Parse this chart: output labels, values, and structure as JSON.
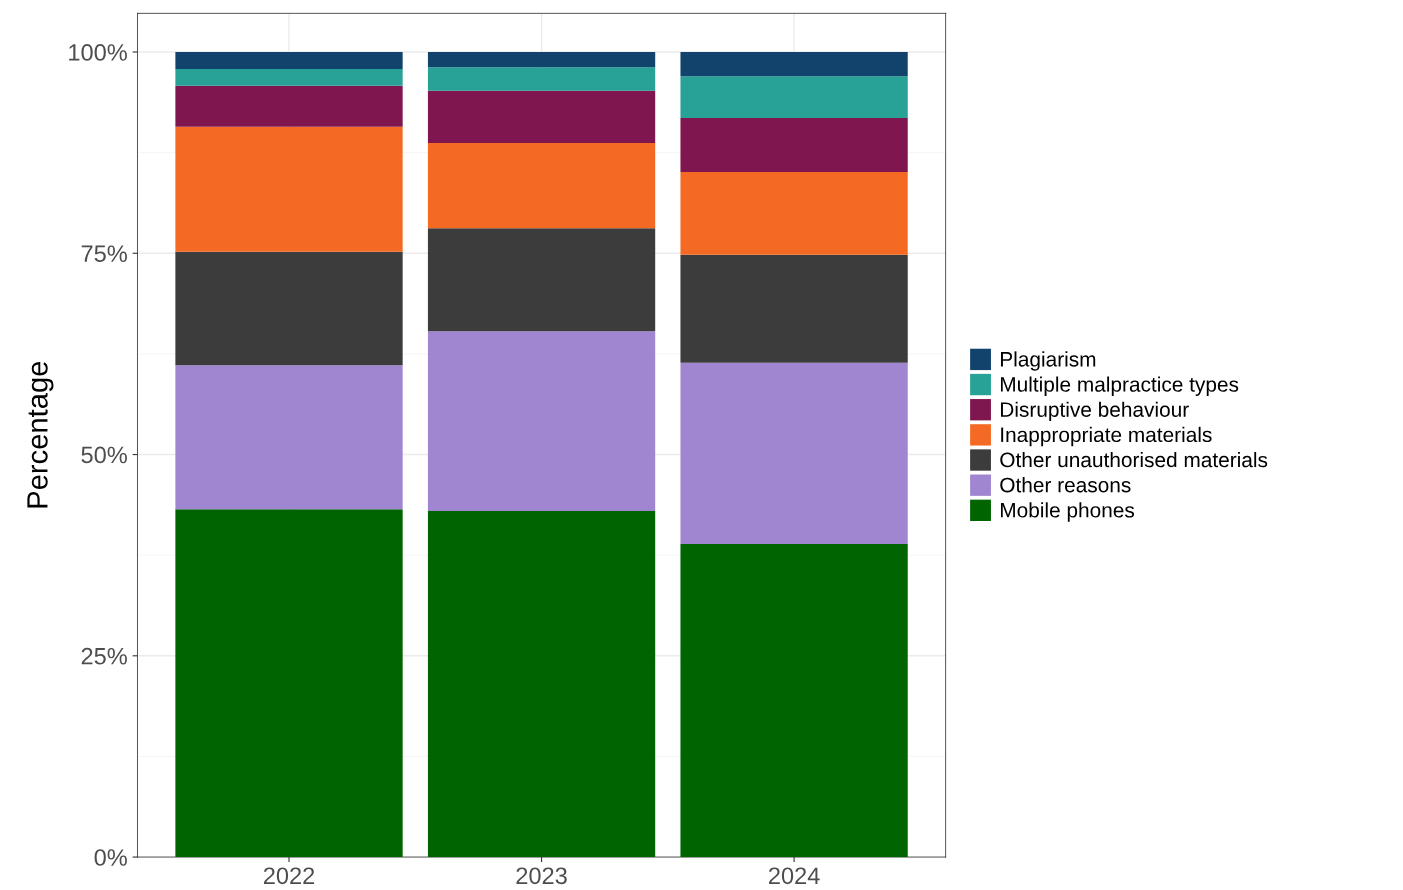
{
  "chart_data": {
    "type": "bar",
    "stacked": true,
    "ylabel": "Percentage",
    "categories": [
      "2022",
      "2023",
      "2024"
    ],
    "series": [
      {
        "name": "Mobile phones",
        "color": "#006400",
        "values": [
          43.2,
          43.0,
          38.9
        ]
      },
      {
        "name": "Other reasons",
        "color": "#a086d0",
        "values": [
          17.9,
          22.3,
          22.5
        ]
      },
      {
        "name": "Other unauthorised materials",
        "color": "#3c3c3c",
        "values": [
          14.1,
          12.8,
          13.4
        ]
      },
      {
        "name": "Inappropriate materials",
        "color": "#f46a25",
        "values": [
          15.5,
          10.6,
          10.3
        ]
      },
      {
        "name": "Disruptive behaviour",
        "color": "#801650",
        "values": [
          5.1,
          6.5,
          6.7
        ]
      },
      {
        "name": "Multiple malpractice types",
        "color": "#28a197",
        "values": [
          2.1,
          2.9,
          5.2
        ]
      },
      {
        "name": "Plagiarism",
        "color": "#12436d",
        "values": [
          2.1,
          1.9,
          3.0
        ]
      }
    ],
    "ylim": [
      0,
      104.8
    ],
    "yticks": [
      {
        "value": 0,
        "label": "0%"
      },
      {
        "value": 12.5,
        "label": null
      },
      {
        "value": 25,
        "label": "25%"
      },
      {
        "value": 37.5,
        "label": null
      },
      {
        "value": 50,
        "label": "50%"
      },
      {
        "value": 62.5,
        "label": null
      },
      {
        "value": 75,
        "label": "75%"
      },
      {
        "value": 87.5,
        "label": null
      },
      {
        "value": 100,
        "label": "100%"
      }
    ],
    "grid": true,
    "legend": "right"
  }
}
